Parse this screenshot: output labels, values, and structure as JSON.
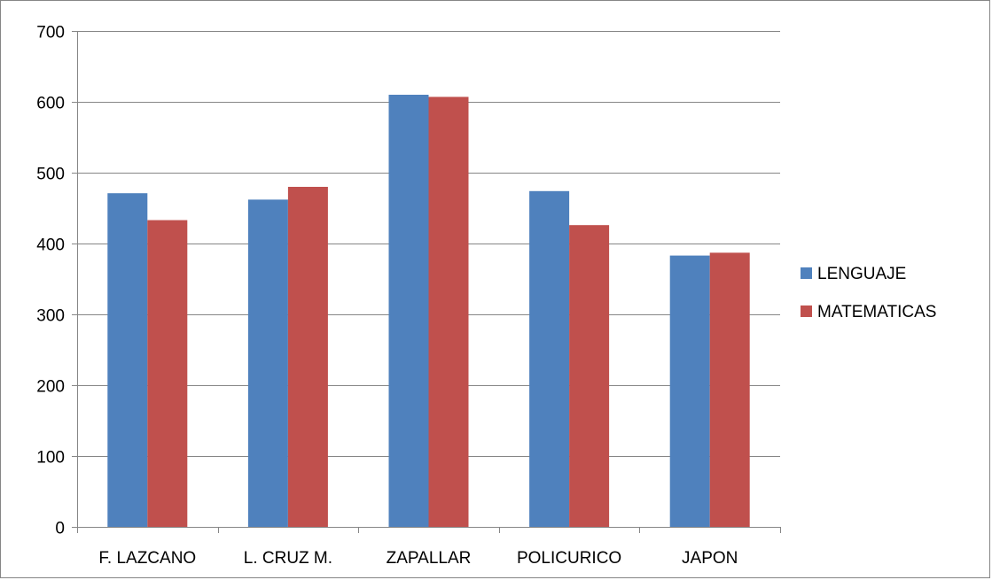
{
  "chart_data": {
    "type": "bar",
    "title": "",
    "xlabel": "",
    "ylabel": "",
    "categories": [
      "F. LAZCANO",
      "L. CRUZ M.",
      "ZAPALLAR",
      "POLICURICO",
      "JAPON"
    ],
    "series": [
      {
        "name": "LENGUAJE",
        "color": "#4F81BD",
        "values": [
          471,
          462,
          610,
          474,
          383
        ]
      },
      {
        "name": "MATEMATICAS",
        "color": "#C0504D",
        "values": [
          433,
          480,
          607,
          426,
          387
        ]
      }
    ],
    "ylim": [
      0,
      700
    ],
    "yticks": [
      0,
      100,
      200,
      300,
      400,
      500,
      600,
      700
    ],
    "grid": true,
    "legend_position": "right"
  }
}
